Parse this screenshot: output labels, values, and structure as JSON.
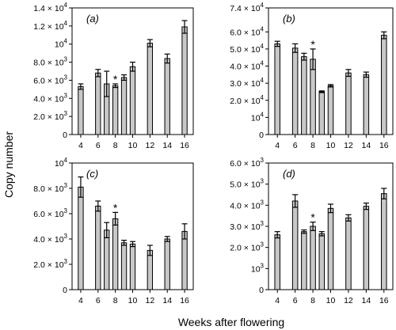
{
  "figure": {
    "ylabel": "Copy number",
    "xlabel": "Weeks after flowering"
  },
  "chart_data": [
    {
      "type": "bar",
      "panel_label": "(a)",
      "x": [
        4,
        6,
        7,
        8,
        9,
        10,
        12,
        14,
        16
      ],
      "values": [
        5300,
        6800,
        5600,
        5400,
        6300,
        7500,
        10100,
        8400,
        11900
      ],
      "errors": [
        300,
        400,
        1400,
        200,
        300,
        500,
        400,
        500,
        700
      ],
      "significance_marker": {
        "x": 8,
        "label": "*"
      },
      "ylim": [
        0,
        14000
      ],
      "yticks": [
        0,
        2000,
        4000,
        6000,
        8000,
        10000,
        12000,
        14000
      ],
      "ytick_labels": [
        {
          "mant": "0",
          "exp": ""
        },
        {
          "mant": "2.0 × 10",
          "exp": "3"
        },
        {
          "mant": "4.0 × 10",
          "exp": "3"
        },
        {
          "mant": "6.0 × 10",
          "exp": "3"
        },
        {
          "mant": "8.0 × 10",
          "exp": "3"
        },
        {
          "mant": "10",
          "exp": "4"
        },
        {
          "mant": "1.2 × 10",
          "exp": "4"
        },
        {
          "mant": "1.4 × 10",
          "exp": "4"
        }
      ],
      "xticks": [
        4,
        6,
        8,
        10,
        12,
        14,
        16
      ]
    },
    {
      "type": "bar",
      "panel_label": "(b)",
      "x": [
        4,
        6,
        7,
        8,
        9,
        10,
        12,
        14,
        16
      ],
      "values": [
        53000,
        50500,
        45500,
        44000,
        25000,
        28500,
        36000,
        35000,
        58000
      ],
      "errors": [
        1500,
        2500,
        2000,
        6000,
        500,
        700,
        2000,
        1500,
        2000
      ],
      "significance_marker": {
        "x": 8,
        "label": "*"
      },
      "ylim": [
        0,
        74000
      ],
      "yticks": [
        0,
        10000,
        20000,
        30000,
        40000,
        50000,
        60000,
        74000
      ],
      "ytick_labels": [
        {
          "mant": "0",
          "exp": ""
        },
        {
          "mant": "10",
          "exp": "4"
        },
        {
          "mant": "2.0 × 10",
          "exp": "4"
        },
        {
          "mant": "3.0 × 10",
          "exp": "4"
        },
        {
          "mant": "4.0 × 10",
          "exp": "4"
        },
        {
          "mant": "5.0 × 10",
          "exp": "4"
        },
        {
          "mant": "6.0 × 10",
          "exp": "4"
        },
        {
          "mant": "7.4 × 10",
          "exp": "4"
        }
      ],
      "xticks": [
        4,
        6,
        8,
        10,
        12,
        14,
        16
      ]
    },
    {
      "type": "bar",
      "panel_label": "(c)",
      "x": [
        4,
        6,
        7,
        8,
        9,
        10,
        12,
        14,
        16
      ],
      "values": [
        8100,
        6600,
        4700,
        5600,
        3700,
        3600,
        3100,
        4000,
        4600
      ],
      "errors": [
        800,
        400,
        600,
        500,
        200,
        200,
        400,
        200,
        600
      ],
      "significance_marker": {
        "x": 8,
        "label": "*"
      },
      "ylim": [
        0,
        10000
      ],
      "yticks": [
        0,
        2000,
        4000,
        6000,
        8000,
        10000
      ],
      "ytick_labels": [
        {
          "mant": "0",
          "exp": ""
        },
        {
          "mant": "2.0 × 10",
          "exp": "3"
        },
        {
          "mant": "4.0 × 10",
          "exp": "3"
        },
        {
          "mant": "6.0 × 10",
          "exp": "3"
        },
        {
          "mant": "8.0 × 10",
          "exp": "3"
        },
        {
          "mant": "10",
          "exp": "4"
        }
      ],
      "xticks": [
        4,
        6,
        8,
        10,
        12,
        14,
        16
      ]
    },
    {
      "type": "bar",
      "panel_label": "(d)",
      "x": [
        4,
        6,
        7,
        8,
        9,
        10,
        12,
        14,
        16
      ],
      "values": [
        2600,
        4200,
        2750,
        3000,
        2650,
        3850,
        3400,
        3950,
        4550
      ],
      "errors": [
        150,
        300,
        80,
        200,
        100,
        200,
        150,
        150,
        250
      ],
      "significance_marker": {
        "x": 8,
        "label": "*"
      },
      "ylim": [
        0,
        6000
      ],
      "yticks": [
        0,
        1000,
        2000,
        3000,
        4000,
        5000,
        6000
      ],
      "ytick_labels": [
        {
          "mant": "0",
          "exp": ""
        },
        {
          "mant": "10",
          "exp": "3"
        },
        {
          "mant": "2.0 × 10",
          "exp": "3"
        },
        {
          "mant": "3.0 × 10",
          "exp": "3"
        },
        {
          "mant": "4.0 × 10",
          "exp": "3"
        },
        {
          "mant": "5.0 × 10",
          "exp": "3"
        },
        {
          "mant": "6.0 × 10",
          "exp": "3"
        }
      ],
      "xticks": [
        4,
        6,
        8,
        10,
        12,
        14,
        16
      ]
    }
  ],
  "colors": {
    "bar_fill": "#c8c8c8",
    "bar_stroke": "#000000",
    "axis": "#000000"
  }
}
